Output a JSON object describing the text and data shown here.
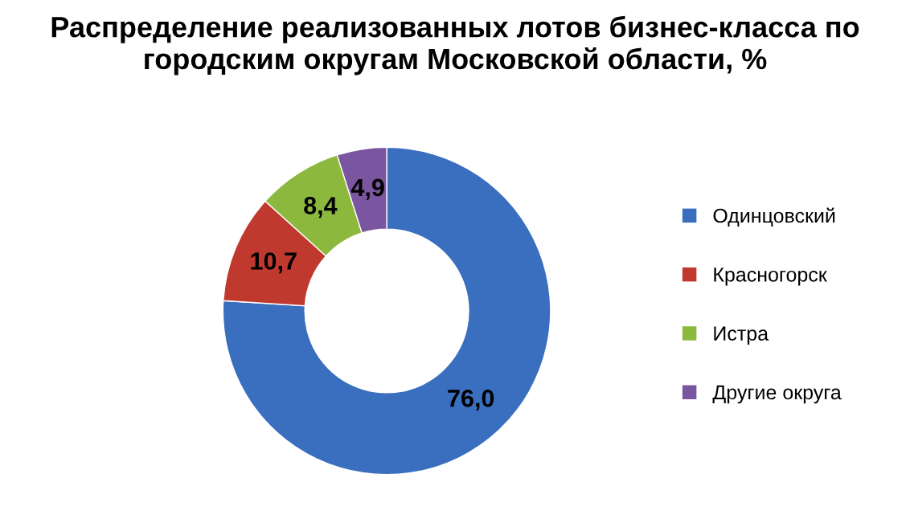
{
  "chart_data": {
    "type": "donut",
    "title": "Распределение реализованных лотов бизнес-класса по городским округам Московской области, %",
    "categories": [
      "Одинцовский",
      "Красногорск",
      "Истра",
      "Другие округа"
    ],
    "values": [
      76.0,
      10.7,
      8.4,
      4.9
    ],
    "value_labels": [
      "76,0",
      "10,7",
      "8,4",
      "4,9"
    ],
    "colors": [
      "#3a6fbf",
      "#c0392f",
      "#8cb83e",
      "#7a56a0"
    ],
    "legend": "right"
  }
}
